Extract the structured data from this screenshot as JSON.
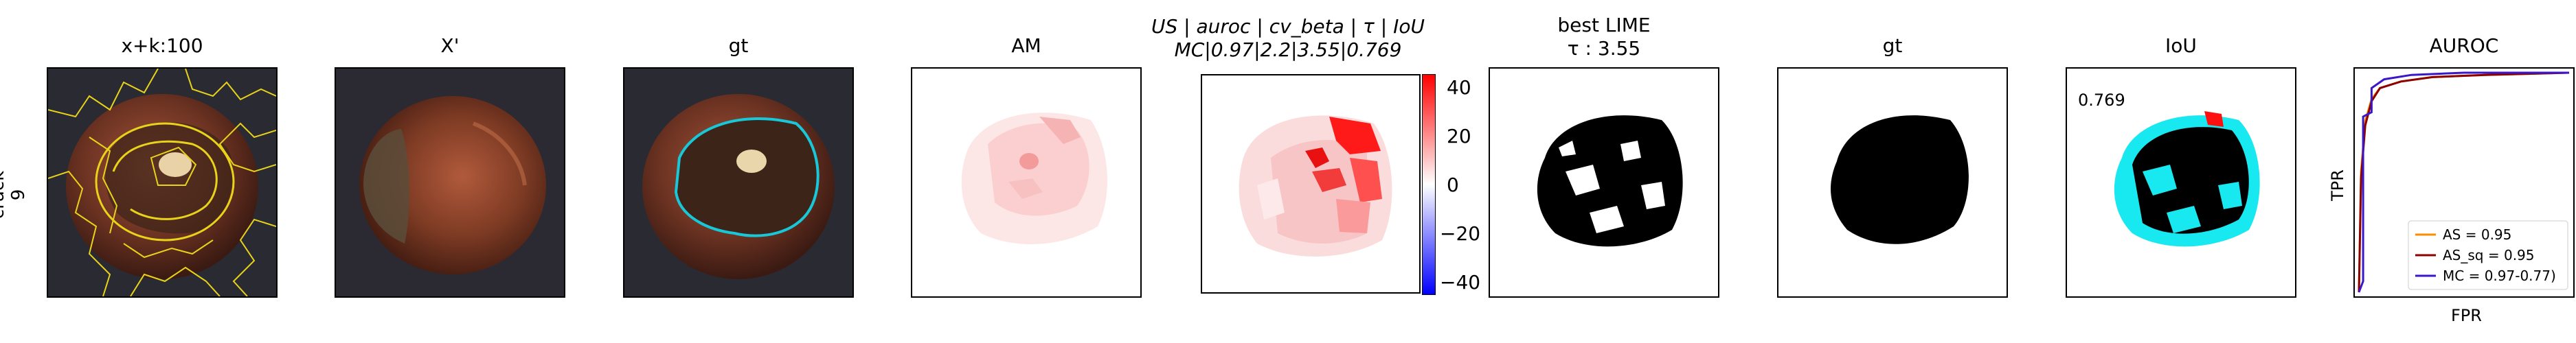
{
  "row_label": {
    "line1": "crack",
    "line2": "9"
  },
  "panels": {
    "p1": {
      "title": "x+k:100"
    },
    "p2": {
      "title": "X'"
    },
    "p3": {
      "title": "gt"
    },
    "p4": {
      "title": "AM"
    },
    "p5": {
      "title_line1": "US | auroc | cv_beta | τ | IoU",
      "title_line2": "MC|0.97|2.2|3.55|0.769"
    },
    "p6": {
      "title_line1": "best LIME",
      "title_line2": "τ : 3.55"
    },
    "p7": {
      "title": "gt"
    },
    "p8": {
      "title": "IoU",
      "iou_value": "0.769"
    },
    "p9": {
      "title": "AUROC",
      "xlabel": "FPR",
      "ylabel": "TPR"
    }
  },
  "colorbar": {
    "ticks": [
      "40",
      "20",
      "0",
      "−20",
      "−40"
    ],
    "range": [
      -45,
      45
    ],
    "colormap": "bwr"
  },
  "colors": {
    "seg": "#e8d31a",
    "outline": "#18c8d8",
    "cb_pos": "#ff0000",
    "cb_neg": "#0000ff"
  },
  "chart_data": {
    "type": "line",
    "title": "AUROC",
    "xlabel": "FPR",
    "ylabel": "TPR",
    "xlim": [
      0,
      1
    ],
    "ylim": [
      0,
      1
    ],
    "legend_position": "bottom-right",
    "series": [
      {
        "name": "AS = 0.95",
        "color": "#ff8c00",
        "x": [
          0,
          0.01,
          0.03,
          0.06,
          0.1,
          0.2,
          0.35,
          0.6,
          1.0
        ],
        "y": [
          0,
          0.55,
          0.78,
          0.88,
          0.93,
          0.96,
          0.98,
          0.99,
          1.0
        ]
      },
      {
        "name": "AS_sq = 0.95",
        "color": "#8b0000",
        "x": [
          0,
          0.01,
          0.03,
          0.06,
          0.1,
          0.2,
          0.35,
          0.6,
          1.0
        ],
        "y": [
          0,
          0.52,
          0.76,
          0.87,
          0.93,
          0.96,
          0.98,
          0.99,
          1.0
        ]
      },
      {
        "name": "MC = 0.97-0.77)",
        "color": "#3a17c8",
        "x": [
          0,
          0.02,
          0.02,
          0.06,
          0.06,
          0.12,
          0.25,
          0.5,
          1.0
        ],
        "y": [
          0,
          0.05,
          0.8,
          0.82,
          0.93,
          0.97,
          0.99,
          1.0,
          1.0
        ]
      }
    ]
  }
}
